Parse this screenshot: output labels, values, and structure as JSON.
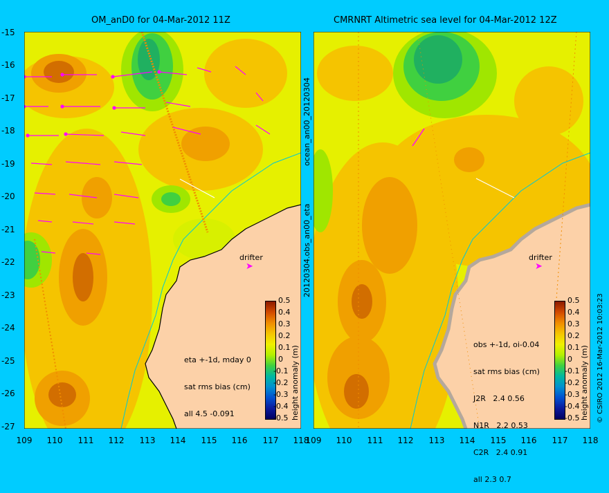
{
  "left": {
    "title": "OM_anD0 for 04-Mar-2012 11Z",
    "stats": [
      "eta +-1d, mday 0",
      "sat rms bias (cm)",
      "all 4.5 -0.091"
    ],
    "side_label": "ocean_an00_20120304"
  },
  "right": {
    "title": "CMRNRT Altimetric sea level  for 04-Mar-2012 12Z",
    "stats": [
      "obs +-1d, oi-0.04",
      "sat rms bias (cm)",
      "J2R   2.4 0.56",
      "N1R   2.2 0.53",
      "C2R   2.4 0.91",
      "all 2.3 0.7"
    ],
    "side_label": "20120304.obs_an00_eta"
  },
  "drifter_label": "drifter",
  "colorbar": {
    "label": "height anomaly (m)",
    "ticks": [
      "0.5",
      "0.4",
      "0.3",
      "0.2",
      "0.1",
      "0",
      "-0.1",
      "-0.2",
      "-0.3",
      "-0.4",
      "-0.5"
    ]
  },
  "lat_ticks": [
    "-15",
    "-16",
    "-17",
    "-18",
    "-19",
    "-20",
    "-21",
    "-22",
    "-23",
    "-24",
    "-25",
    "-26",
    "-27"
  ],
  "lon_ticks": [
    "109",
    "110",
    "111",
    "112",
    "113",
    "114",
    "115",
    "116",
    "117",
    "118"
  ],
  "copyright": "© CSIRO 2012  16-Mar-2012 10:03:23",
  "colors": {
    "frame": "#00ccff",
    "land": "#fcd1a8",
    "vectors": "#ff00ff",
    "coast_line": "#00c8d8"
  }
}
